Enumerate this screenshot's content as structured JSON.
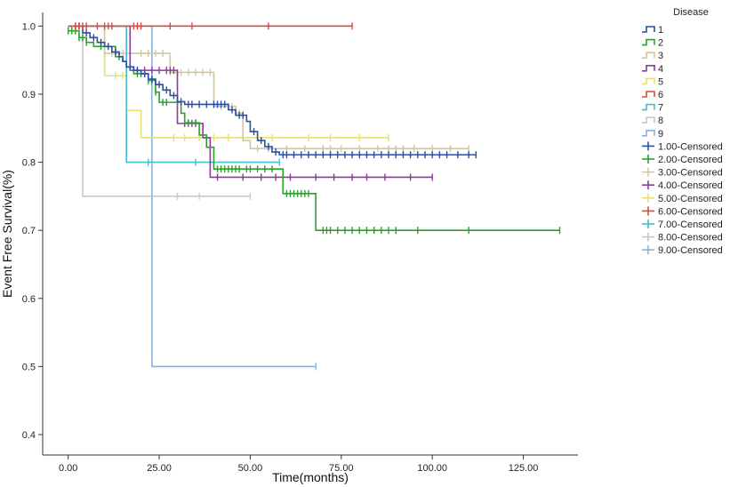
{
  "chart_data": {
    "type": "line",
    "xlabel": "Time(months)",
    "ylabel": "Event Free Survival(%)",
    "xlim": [
      -7,
      140
    ],
    "ylim": [
      0.37,
      1.02
    ],
    "x_ticks": [
      0,
      25,
      50,
      75,
      100,
      125
    ],
    "x_tick_labels": [
      "0.00",
      "25.00",
      "50.00",
      "75.00",
      "100.00",
      "125.00"
    ],
    "y_ticks": [
      0.4,
      0.5,
      0.6,
      0.7,
      0.8,
      0.9,
      1.0
    ],
    "y_tick_labels": [
      "0.4",
      "0.5",
      "0.6",
      "0.7",
      "0.8",
      "0.9",
      "1.0"
    ],
    "legend": {
      "title": "Disease",
      "position": "right",
      "entries": [
        {
          "label": "1",
          "kind": "line",
          "color": "#2c4ea5"
        },
        {
          "label": "2",
          "kind": "line",
          "color": "#2ca02c"
        },
        {
          "label": "3",
          "kind": "line",
          "color": "#d2c8a0"
        },
        {
          "label": "4",
          "kind": "line",
          "color": "#8a3b9a"
        },
        {
          "label": "5",
          "kind": "line",
          "color": "#e8e070"
        },
        {
          "label": "6",
          "kind": "line",
          "color": "#e0483c"
        },
        {
          "label": "7",
          "kind": "line",
          "color": "#40c0d0"
        },
        {
          "label": "8",
          "kind": "line",
          "color": "#c8c8c8"
        },
        {
          "label": "9",
          "kind": "line",
          "color": "#88b4dc"
        },
        {
          "label": "1.00-Censored",
          "kind": "censor",
          "color": "#2c4ea5"
        },
        {
          "label": "2.00-Censored",
          "kind": "censor",
          "color": "#2ca02c"
        },
        {
          "label": "3.00-Censored",
          "kind": "censor",
          "color": "#d2c8a0"
        },
        {
          "label": "4.00-Censored",
          "kind": "censor",
          "color": "#8a3b9a"
        },
        {
          "label": "5.00-Censored",
          "kind": "censor",
          "color": "#e8e070"
        },
        {
          "label": "6.00-Censored",
          "kind": "censor",
          "color": "#e0483c"
        },
        {
          "label": "7.00-Censored",
          "kind": "censor",
          "color": "#40c0d0"
        },
        {
          "label": "8.00-Censored",
          "kind": "censor",
          "color": "#c8c8c8"
        },
        {
          "label": "9.00-Censored",
          "kind": "censor",
          "color": "#88b4dc"
        }
      ]
    },
    "series": [
      {
        "name": "1",
        "color": "#2c4ea5",
        "steps": [
          [
            0,
            1.0
          ],
          [
            4,
            0.99
          ],
          [
            6,
            0.983
          ],
          [
            8,
            0.976
          ],
          [
            10,
            0.97
          ],
          [
            12,
            0.962
          ],
          [
            14,
            0.955
          ],
          [
            15,
            0.948
          ],
          [
            16,
            0.94
          ],
          [
            18,
            0.935
          ],
          [
            20,
            0.93
          ],
          [
            22,
            0.922
          ],
          [
            24,
            0.914
          ],
          [
            26,
            0.906
          ],
          [
            28,
            0.898
          ],
          [
            30,
            0.889
          ],
          [
            32,
            0.885
          ],
          [
            44,
            0.877
          ],
          [
            46,
            0.869
          ],
          [
            49,
            0.86
          ],
          [
            50,
            0.845
          ],
          [
            52,
            0.832
          ],
          [
            54,
            0.823
          ],
          [
            56,
            0.815
          ],
          [
            58,
            0.811
          ]
        ],
        "end": 112,
        "censored": [
          2,
          3,
          5,
          7,
          9,
          11,
          13,
          17,
          19,
          21,
          23,
          25,
          27,
          29,
          31,
          33,
          34,
          36,
          38,
          40,
          41,
          42,
          43,
          45,
          47,
          48,
          51,
          53,
          55,
          57,
          59,
          60,
          62,
          64,
          66,
          68,
          70,
          72,
          74,
          76,
          78,
          80,
          82,
          84,
          86,
          88,
          90,
          92,
          94,
          96,
          98,
          100,
          102,
          104,
          107,
          110,
          112
        ]
      },
      {
        "name": "2",
        "color": "#2ca02c",
        "steps": [
          [
            0,
            0.993
          ],
          [
            3,
            0.983
          ],
          [
            5,
            0.976
          ],
          [
            7,
            0.97
          ],
          [
            13,
            0.955
          ],
          [
            15,
            0.948
          ],
          [
            16,
            0.94
          ],
          [
            18,
            0.93
          ],
          [
            22,
            0.92
          ],
          [
            24,
            0.903
          ],
          [
            25,
            0.888
          ],
          [
            31,
            0.872
          ],
          [
            32,
            0.858
          ],
          [
            36,
            0.84
          ],
          [
            38,
            0.822
          ],
          [
            40,
            0.79
          ],
          [
            59,
            0.754
          ],
          [
            68,
            0.7
          ]
        ],
        "end": 135,
        "censored": [
          0,
          1,
          2,
          3,
          4,
          5,
          9,
          14,
          19,
          20,
          21,
          22,
          23,
          24,
          26,
          27,
          30,
          33,
          35,
          41,
          42,
          43,
          44,
          45,
          46,
          47,
          49,
          50,
          52,
          54,
          56,
          60,
          61,
          62,
          63,
          64,
          65,
          66,
          70,
          71,
          72,
          74,
          76,
          78,
          80,
          82,
          84,
          86,
          88,
          90,
          96,
          110,
          135
        ]
      },
      {
        "name": "3",
        "color": "#d2c8a0",
        "steps": [
          [
            0,
            1.0
          ],
          [
            10,
            0.96
          ],
          [
            28,
            0.932
          ],
          [
            40,
            0.882
          ],
          [
            46,
            0.872
          ],
          [
            48,
            0.832
          ],
          [
            50,
            0.82
          ]
        ],
        "end": 110,
        "censored": [
          10,
          12,
          15,
          17,
          20,
          22,
          24,
          26,
          28,
          30,
          31,
          33,
          35,
          37,
          39,
          42,
          44,
          45,
          47,
          52,
          55,
          60,
          65,
          70,
          72,
          75,
          80,
          85,
          88,
          90,
          92,
          95,
          100,
          105,
          110
        ]
      },
      {
        "name": "4",
        "color": "#8a3b9a",
        "steps": [
          [
            0,
            1.0
          ],
          [
            17,
            0.935
          ],
          [
            30,
            0.857
          ],
          [
            37,
            0.836
          ],
          [
            39,
            0.778
          ]
        ],
        "end": 100,
        "censored": [
          19,
          21,
          23,
          25,
          27,
          28,
          29,
          32,
          33,
          34,
          35,
          41,
          48,
          53,
          57,
          61,
          68,
          73,
          78,
          82,
          87,
          94,
          100
        ]
      },
      {
        "name": "5",
        "color": "#e8e070",
        "steps": [
          [
            0,
            1.0
          ],
          [
            10,
            0.927
          ],
          [
            16,
            0.876
          ],
          [
            20,
            0.836
          ]
        ],
        "end": 88,
        "censored": [
          5,
          13,
          15,
          29,
          32,
          36,
          40,
          44,
          48,
          52,
          56,
          66,
          72,
          80,
          88
        ]
      },
      {
        "name": "6",
        "color": "#e0483c",
        "steps": [
          [
            0,
            1.0
          ]
        ],
        "end": 78,
        "censored": [
          2,
          3,
          4,
          5,
          8,
          10,
          11,
          12,
          18,
          19,
          20,
          28,
          34,
          55,
          78
        ]
      },
      {
        "name": "7",
        "color": "#40c0d0",
        "steps": [
          [
            0,
            1.0
          ],
          [
            16,
            0.8
          ]
        ],
        "end": 58,
        "censored": [
          22,
          35,
          58
        ]
      },
      {
        "name": "8",
        "color": "#c8c8c8",
        "steps": [
          [
            0,
            1.0
          ],
          [
            4,
            0.75
          ]
        ],
        "end": 50,
        "censored": [
          30,
          36,
          50
        ]
      },
      {
        "name": "9",
        "color": "#88b4dc",
        "steps": [
          [
            0,
            1.0
          ],
          [
            23,
            0.5
          ]
        ],
        "end": 68,
        "censored": [
          3,
          68
        ]
      }
    ]
  }
}
